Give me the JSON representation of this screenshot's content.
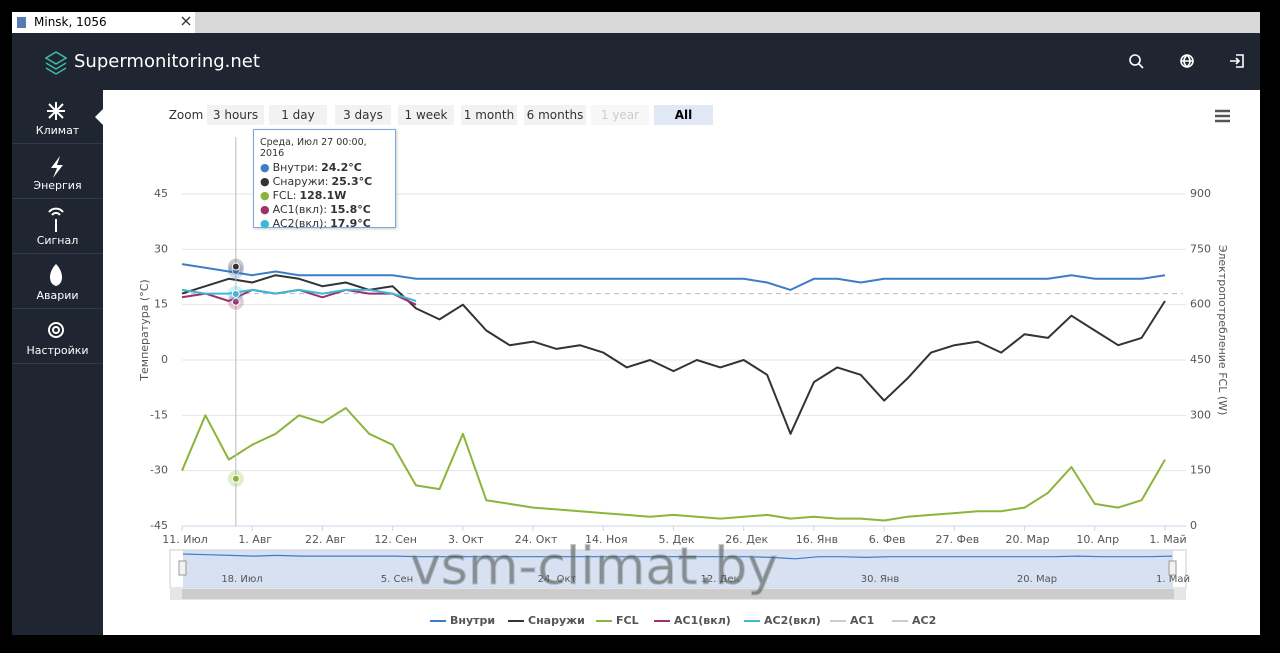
{
  "tab": {
    "title": "Minsk, 1056"
  },
  "header": {
    "brand": "Supermonitoring.net"
  },
  "nav": [
    "Климат",
    "Энергия",
    "Сигнал",
    "Аварии",
    "Настройки"
  ],
  "zoom": {
    "label": "Zoom",
    "buttons": [
      "3 hours",
      "1 day",
      "3 days",
      "1 week",
      "1 month",
      "6 months",
      "1 year",
      "All"
    ],
    "active": 7,
    "disabled": 6
  },
  "watermark": "vsm-climat.by",
  "chart_data": {
    "type": "line",
    "y_label": "Температура (°C)",
    "y2_label": "Электропотребление FCL (W)",
    "categories": [
      "11. Июл",
      null,
      null,
      "1. Авг",
      null,
      null,
      "22. Авг",
      null,
      null,
      "12. Сен",
      null,
      null,
      "3. Окт",
      null,
      null,
      "24. Окт",
      null,
      null,
      "14. Ноя",
      null,
      null,
      "5. Дек",
      null,
      null,
      "26. Дек",
      null,
      null,
      "16. Янв",
      null,
      null,
      "6. Фев",
      null,
      null,
      "27. Фев",
      null,
      null,
      "20. Мар",
      null,
      null,
      "10. Апр",
      null,
      null,
      "1. Май"
    ],
    "ylim": [
      -45,
      45
    ],
    "yticks": [
      -45,
      -30,
      -15,
      0,
      15,
      30,
      45
    ],
    "y2lim": [
      0,
      900
    ],
    "y2ticks": [
      0,
      150,
      300,
      450,
      600,
      750,
      900
    ],
    "grid": true,
    "reference_line": 18,
    "series": [
      {
        "name": "Внутри",
        "color": "#3d7dc8",
        "values": [
          26,
          25,
          24,
          23,
          24,
          23,
          23,
          23,
          23,
          23,
          22,
          22,
          22,
          22,
          22,
          22,
          22,
          22,
          22,
          22,
          22,
          22,
          22,
          22,
          22,
          21,
          19,
          22,
          22,
          21,
          22,
          22,
          22,
          22,
          22,
          22,
          22,
          22,
          23,
          22,
          22,
          22,
          23
        ]
      },
      {
        "name": "Снаружи",
        "color": "#333333",
        "values": [
          18,
          20,
          22,
          21,
          23,
          22,
          20,
          21,
          19,
          20,
          14,
          11,
          15,
          8,
          4,
          5,
          3,
          4,
          2,
          -2,
          0,
          -3,
          0,
          -2,
          0,
          -4,
          -20,
          -6,
          -2,
          -4,
          -11,
          -5,
          2,
          4,
          5,
          2,
          7,
          6,
          12,
          8,
          4,
          6,
          16
        ]
      },
      {
        "name": "FCL",
        "color": "#8db43a",
        "axis": "y2",
        "values": [
          150,
          300,
          180,
          220,
          250,
          300,
          280,
          320,
          250,
          220,
          110,
          100,
          250,
          70,
          60,
          50,
          45,
          40,
          35,
          30,
          25,
          30,
          25,
          20,
          25,
          30,
          20,
          25,
          20,
          20,
          15,
          25,
          30,
          35,
          40,
          40,
          50,
          90,
          160,
          60,
          50,
          70,
          180
        ]
      },
      {
        "name": "AC1(вкл)",
        "color": "#a0306a",
        "values": [
          17,
          18,
          16,
          19,
          18,
          19,
          17,
          19,
          18,
          18,
          15,
          null,
          null,
          null,
          null,
          null,
          null,
          null,
          null,
          null,
          null,
          null,
          null,
          null,
          null,
          null,
          null,
          null,
          null,
          null,
          null,
          null,
          null,
          null,
          null,
          null,
          null,
          null,
          null,
          null,
          null,
          null,
          null
        ]
      },
      {
        "name": "AC2(вкл)",
        "color": "#3db8d8",
        "values": [
          19,
          18,
          18,
          19,
          18,
          19,
          18,
          19,
          19,
          18,
          16,
          null,
          null,
          null,
          null,
          null,
          null,
          null,
          null,
          null,
          null,
          null,
          null,
          null,
          null,
          null,
          null,
          null,
          null,
          null,
          null,
          null,
          null,
          null,
          null,
          null,
          null,
          null,
          null,
          null,
          null,
          null,
          null
        ]
      }
    ],
    "legend_hidden": [
      "AC1",
      "AC2"
    ],
    "navigator_labels": [
      "18. Июл",
      "5. Сен",
      "24. Окт",
      "12. Дек",
      "30. Янв",
      "20. Мар",
      "1. Май"
    ],
    "tooltip": {
      "title": "Среда, Июл 27 00:00, 2016",
      "items": [
        {
          "name": "Внутри:",
          "value": 24.2,
          "label": "24.2°C"
        },
        {
          "name": "Снаружи:",
          "value": 25.3,
          "label": "25.3°C"
        },
        {
          "name": "FCL:",
          "value": 128.1,
          "label": "128.1W"
        },
        {
          "name": "AC1(вкл):",
          "value": 15.8,
          "label": "15.8°C"
        },
        {
          "name": "AC2(вкл):",
          "value": 17.9,
          "label": "17.9°C"
        }
      ]
    }
  }
}
